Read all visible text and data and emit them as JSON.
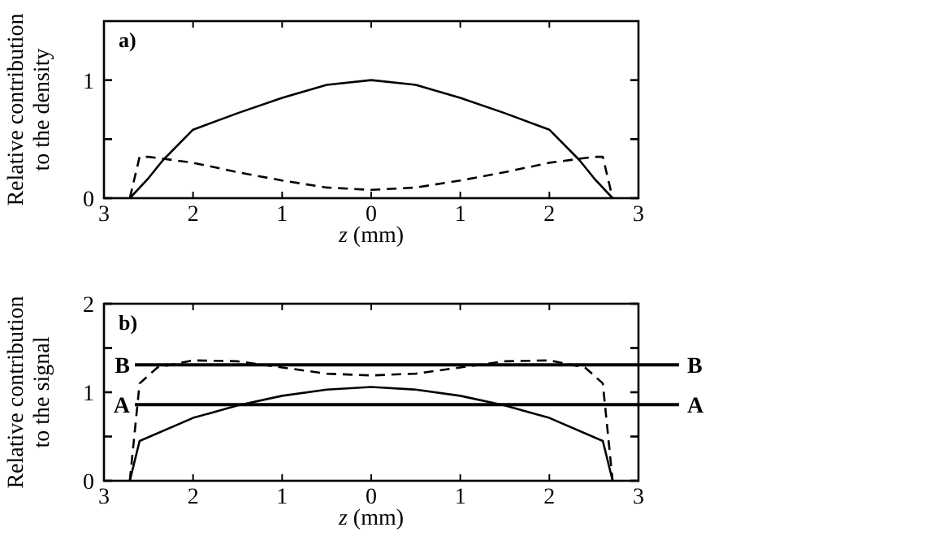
{
  "chart_data": [
    {
      "type": "line",
      "annotations": [
        "a)"
      ],
      "xlabel": "z (mm)",
      "ylabel": "Relative contribution\nto the density",
      "xlim": [
        -3,
        3
      ],
      "xticks": [
        {
          "value": -3,
          "label": "3"
        },
        {
          "value": -2,
          "label": "2"
        },
        {
          "value": -1,
          "label": "1"
        },
        0,
        1,
        2,
        3
      ],
      "ylim": [
        0,
        1.5
      ],
      "yticks": [
        0,
        1
      ],
      "series": [
        {
          "color": "#000000",
          "line_style": "solid",
          "x": [
            -2.71,
            -2.5,
            -2.34,
            -2,
            -1.5,
            -1,
            -0.5,
            0,
            0.5,
            1,
            1.5,
            2,
            2.34,
            2.5,
            2.71
          ],
          "values": [
            0,
            0.17,
            0.32,
            0.58,
            0.72,
            0.85,
            0.96,
            1,
            0.96,
            0.85,
            0.72,
            0.58,
            0.32,
            0.17,
            0
          ]
        },
        {
          "color": "#000000",
          "line_style": "dashed",
          "x": [
            -2.71,
            -2.6,
            -2.5,
            -2,
            -1.5,
            -1,
            -0.5,
            0,
            0.5,
            1,
            1.5,
            2,
            2.5,
            2.6,
            2.71
          ],
          "values": [
            0,
            0.35,
            0.35,
            0.3,
            0.22,
            0.15,
            0.09,
            0.07,
            0.09,
            0.15,
            0.22,
            0.3,
            0.35,
            0.35,
            0
          ]
        }
      ]
    },
    {
      "type": "line",
      "annotations": [
        "b)"
      ],
      "xlabel": "z (mm)",
      "ylabel": "Relative contribution\nto the signal",
      "xlim": [
        -3,
        3
      ],
      "xticks": [
        {
          "value": -3,
          "label": "3"
        },
        {
          "value": -2,
          "label": "2"
        },
        {
          "value": -1,
          "label": "1"
        },
        0,
        1,
        2,
        3
      ],
      "ylim": [
        0,
        2
      ],
      "yticks": [
        0,
        1,
        2
      ],
      "series": [
        {
          "color": "#000000",
          "line_style": "solid",
          "x": [
            -2.71,
            -2.6,
            -2,
            -1.5,
            -1,
            -0.5,
            0,
            0.5,
            1,
            1.5,
            2,
            2.6,
            2.71
          ],
          "values": [
            0,
            0.45,
            0.71,
            0.85,
            0.96,
            1.03,
            1.06,
            1.03,
            0.96,
            0.85,
            0.71,
            0.45,
            0
          ]
        },
        {
          "color": "#000000",
          "line_style": "dashed",
          "x": [
            -2.71,
            -2.6,
            -2.4,
            -2,
            -1.5,
            -1,
            -0.5,
            0,
            0.5,
            1,
            1.5,
            2,
            2.4,
            2.6,
            2.71
          ],
          "values": [
            0,
            1.1,
            1.28,
            1.36,
            1.35,
            1.28,
            1.21,
            1.19,
            1.21,
            1.28,
            1.35,
            1.36,
            1.28,
            1.1,
            0
          ]
        }
      ],
      "ref_lines": [
        {
          "axis": "y",
          "value": 0.86,
          "label": "A",
          "color": "#000000"
        },
        {
          "axis": "y",
          "value": 1.31,
          "label": "B",
          "color": "#000000"
        }
      ]
    }
  ]
}
